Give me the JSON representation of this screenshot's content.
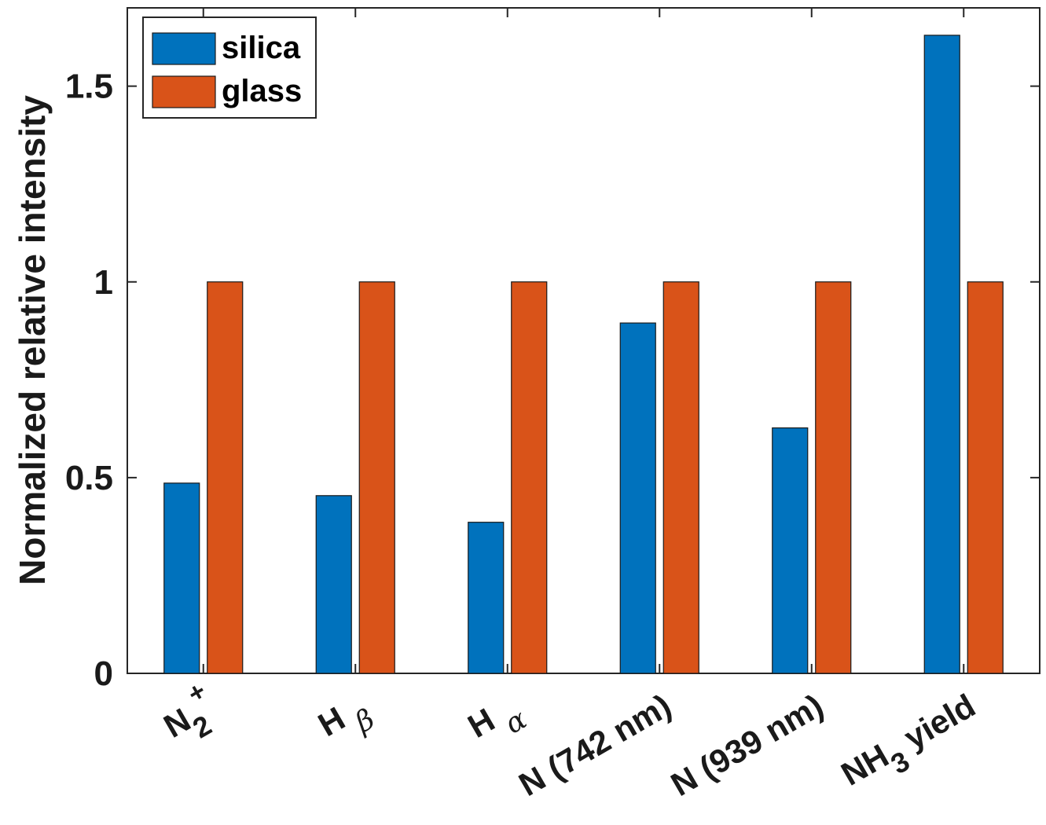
{
  "chart_data": {
    "type": "bar",
    "categories": [
      "N2+",
      "Hβ",
      "Hα",
      "N (742 nm)",
      "N (939 nm)",
      "NH3 yield"
    ],
    "category_labels": [
      {
        "main": "N",
        "sub": "2",
        "sup": "+"
      },
      {
        "main": "H ",
        "greek": "β"
      },
      {
        "main": "H ",
        "greek": "α"
      },
      {
        "main": "N (742 nm)"
      },
      {
        "main": "N (939 nm)"
      },
      {
        "main": "NH",
        "sub": "3",
        "rest": " yield"
      }
    ],
    "series": [
      {
        "name": "silica",
        "color": "#0072BD",
        "values": [
          0.486,
          0.454,
          0.386,
          0.895,
          0.627,
          1.63
        ]
      },
      {
        "name": "glass",
        "color": "#D95319",
        "values": [
          1.0,
          1.0,
          1.0,
          1.0,
          1.0,
          1.0
        ]
      }
    ],
    "ylabel": "Normalized relative intensity",
    "xlabel": "",
    "ylim": [
      0,
      1.7
    ],
    "yticks": [
      0,
      0.5,
      1,
      1.5
    ],
    "ytick_labels": [
      "0",
      "0.5",
      "1",
      "1.5"
    ],
    "legend_position": "top-left",
    "grid": false
  }
}
